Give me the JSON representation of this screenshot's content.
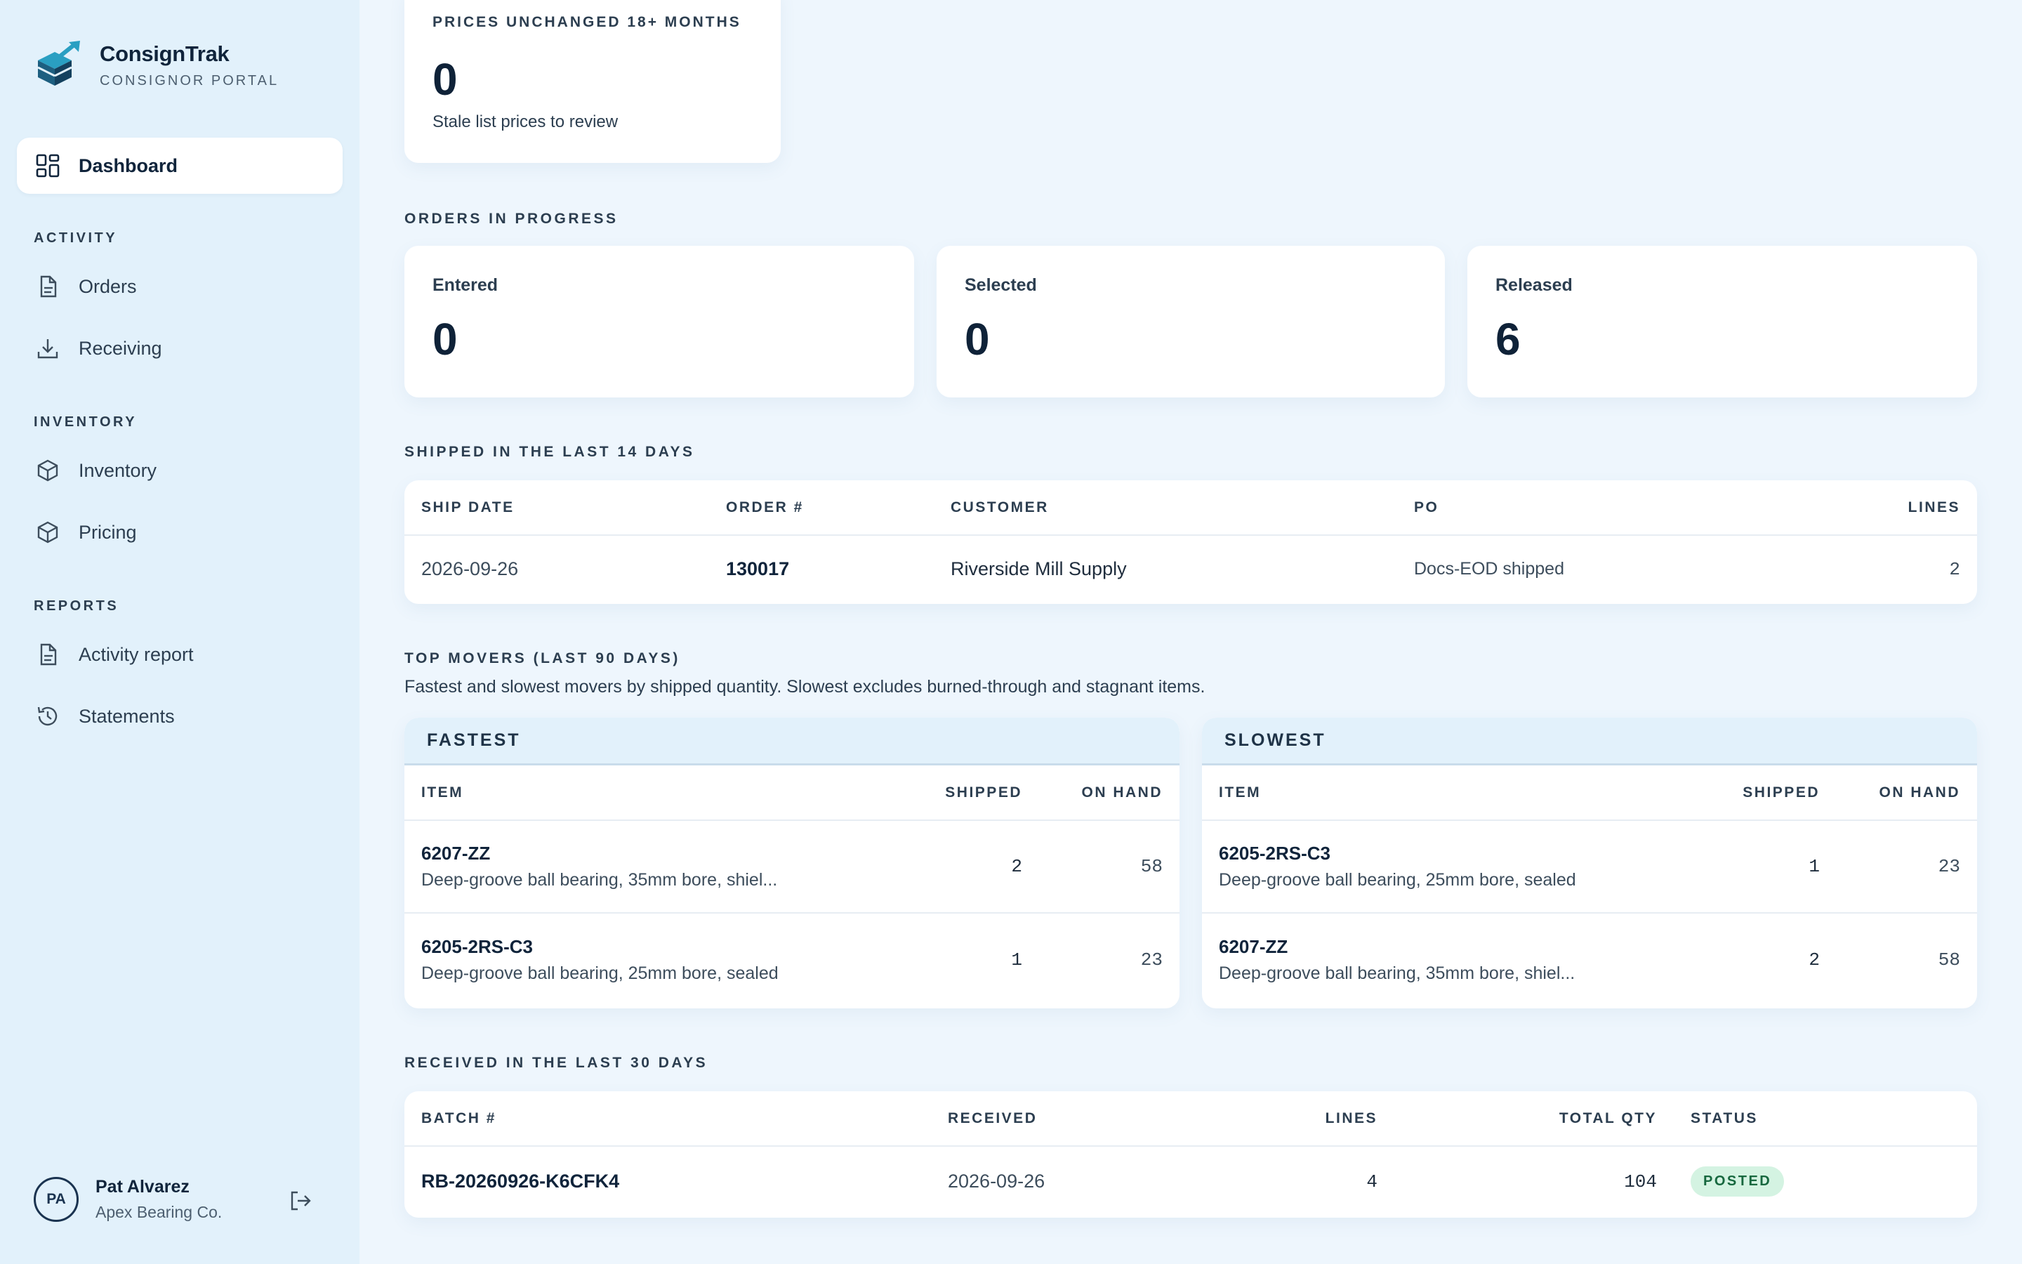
{
  "brand": {
    "name": "ConsignTrak",
    "subtitle": "CONSIGNOR PORTAL"
  },
  "nav": {
    "dashboard": "Dashboard",
    "sections": {
      "activity": "ACTIVITY",
      "inventory": "INVENTORY",
      "reports": "REPORTS"
    },
    "items": {
      "orders": "Orders",
      "receiving": "Receiving",
      "inventory": "Inventory",
      "pricing": "Pricing",
      "activity_report": "Activity report",
      "statements": "Statements"
    }
  },
  "user": {
    "initials": "PA",
    "name": "Pat Alvarez",
    "org": "Apex Bearing Co."
  },
  "stale_prices": {
    "label": "PRICES UNCHANGED 18+ MONTHS",
    "value": "0",
    "desc": "Stale list prices to review"
  },
  "orders_in_progress": {
    "label": "ORDERS IN PROGRESS",
    "entered": {
      "label": "Entered",
      "value": "0"
    },
    "selected": {
      "label": "Selected",
      "value": "0"
    },
    "released": {
      "label": "Released",
      "value": "6"
    }
  },
  "shipped": {
    "label": "SHIPPED IN THE LAST 14 DAYS",
    "columns": [
      "SHIP DATE",
      "ORDER #",
      "CUSTOMER",
      "PO",
      "LINES"
    ],
    "rows": [
      {
        "date": "2026-09-26",
        "order": "130017",
        "customer": "Riverside Mill Supply",
        "po": "Docs-EOD shipped",
        "lines": "2"
      }
    ]
  },
  "top_movers": {
    "label": "TOP MOVERS (LAST 90 DAYS)",
    "desc": "Fastest and slowest movers by shipped quantity. Slowest excludes burned-through and stagnant items.",
    "columns": [
      "ITEM",
      "SHIPPED",
      "ON HAND"
    ],
    "fastest": {
      "title": "FASTEST",
      "rows": [
        {
          "code": "6207-ZZ",
          "desc": "Deep-groove ball bearing, 35mm bore, shiel...",
          "shipped": "2",
          "on_hand": "58"
        },
        {
          "code": "6205-2RS-C3",
          "desc": "Deep-groove ball bearing, 25mm bore, sealed",
          "shipped": "1",
          "on_hand": "23"
        }
      ]
    },
    "slowest": {
      "title": "SLOWEST",
      "rows": [
        {
          "code": "6205-2RS-C3",
          "desc": "Deep-groove ball bearing, 25mm bore, sealed",
          "shipped": "1",
          "on_hand": "23"
        },
        {
          "code": "6207-ZZ",
          "desc": "Deep-groove ball bearing, 35mm bore, shiel...",
          "shipped": "2",
          "on_hand": "58"
        }
      ]
    }
  },
  "received": {
    "label": "RECEIVED IN THE LAST 30 DAYS",
    "columns": [
      "BATCH #",
      "RECEIVED",
      "LINES",
      "TOTAL QTY",
      "STATUS"
    ],
    "rows": [
      {
        "batch": "RB-20260926-K6CFK4",
        "received": "2026-09-26",
        "lines": "4",
        "total_qty": "104",
        "status": "POSTED"
      }
    ]
  },
  "colors": {
    "sidebar_bg": "#e2f1fb",
    "page_bg": "#eef6fd",
    "brand_teal": "#1f8fb0",
    "posted_badge_bg": "#d4f3e2",
    "posted_badge_text": "#17683f"
  }
}
